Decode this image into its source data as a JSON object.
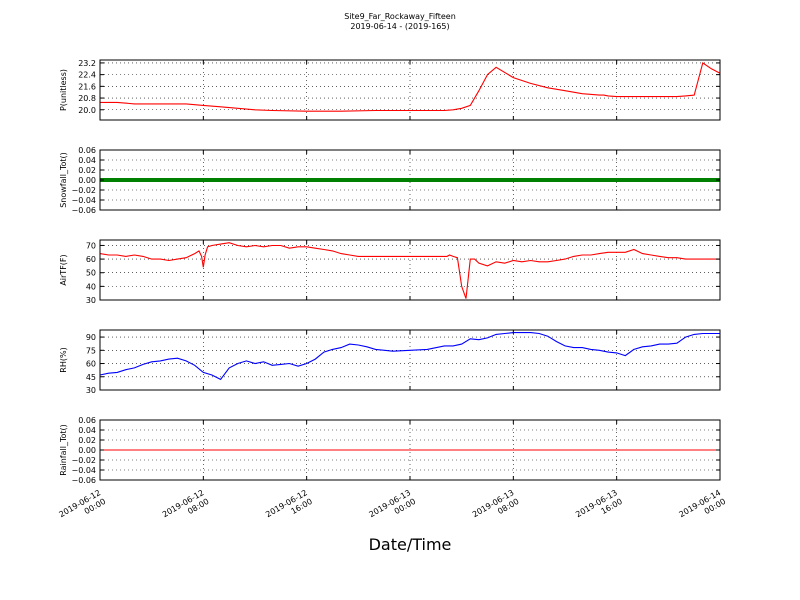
{
  "figure": {
    "title": "Site9_Far_Rockaway_Fifteen",
    "subtitle": "2019-06-14 - (2019-165)",
    "xlabel": "Date/Time"
  },
  "chart_data": [
    {
      "type": "line",
      "ylabel": "P(unitless)",
      "ylim": [
        19.3,
        23.4
      ],
      "yticks": [
        "23.2",
        "22.4",
        "21.6",
        "20.8",
        "20.0"
      ],
      "yticks_values": [
        23.2,
        22.4,
        21.6,
        20.8,
        20.0
      ],
      "color": "#ff0000",
      "grid": true,
      "x_hours": [
        0,
        2,
        4,
        8,
        10,
        12,
        14,
        16,
        18,
        20,
        24,
        28,
        32,
        34,
        36,
        37,
        38,
        38.5,
        39,
        39.5,
        40,
        41,
        42,
        43,
        44,
        45,
        46,
        48,
        50,
        52,
        54,
        56,
        58,
        58.5,
        59,
        60,
        61,
        62,
        63,
        64,
        65,
        66,
        67,
        68,
        69,
        70,
        71,
        72
      ],
      "values": [
        20.5,
        20.5,
        20.4,
        20.4,
        20.4,
        20.3,
        20.2,
        20.1,
        20.0,
        19.95,
        19.9,
        19.9,
        19.95,
        19.95,
        19.95,
        19.95,
        19.95,
        19.95,
        19.95,
        19.95,
        19.95,
        20.0,
        20.1,
        20.3,
        21.3,
        22.4,
        22.9,
        22.2,
        21.8,
        21.5,
        21.3,
        21.1,
        21.0,
        21.0,
        20.95,
        20.9,
        20.9,
        20.9,
        20.9,
        20.9,
        20.9,
        20.9,
        20.9,
        20.95,
        21.0,
        23.2,
        22.8,
        22.5
      ]
    },
    {
      "type": "line",
      "ylabel": "Snowfall_Tot()",
      "ylim": [
        -0.06,
        0.06
      ],
      "yticks": [
        "0.06",
        "0.04",
        "0.02",
        "0.00",
        "−0.02",
        "−0.04",
        "−0.06"
      ],
      "yticks_values": [
        0.06,
        0.04,
        0.02,
        0.0,
        -0.02,
        -0.04,
        -0.06
      ],
      "color": "#008000",
      "marker": "dots",
      "grid": true,
      "x_hours": [
        0,
        72
      ],
      "values": [
        0,
        0
      ]
    },
    {
      "type": "line",
      "ylabel": "AirTF(F)",
      "ylim": [
        30,
        74
      ],
      "yticks": [
        "70",
        "60",
        "50",
        "40",
        "30"
      ],
      "yticks_values": [
        70,
        60,
        50,
        40,
        30
      ],
      "color": "#ff0000",
      "grid": true,
      "x_hours": [
        0,
        1,
        2,
        3,
        4,
        5,
        6,
        7,
        8,
        9,
        10,
        11,
        11.5,
        11.8,
        12,
        12.2,
        12.5,
        13,
        14,
        15,
        16,
        17,
        18,
        19,
        20,
        21,
        22,
        23,
        24,
        25,
        26,
        27,
        28,
        29,
        30,
        31,
        32,
        33,
        34,
        35,
        36,
        37,
        38,
        39,
        39.5,
        39.8,
        40,
        40.3,
        40.6,
        41,
        41.5,
        42,
        42.5,
        43,
        43.5,
        44,
        45,
        46,
        47,
        48,
        49,
        50,
        51,
        52,
        53,
        54,
        55,
        56,
        57,
        58,
        59,
        60,
        61,
        62,
        63,
        64,
        65,
        66,
        67,
        68,
        69,
        70,
        71,
        72
      ],
      "values": [
        64,
        63,
        63,
        62,
        63,
        62,
        60,
        60,
        59,
        60,
        61,
        64,
        66,
        62,
        54,
        63,
        69,
        70,
        71,
        72,
        70,
        69,
        70,
        69,
        70,
        70,
        68,
        69,
        69,
        68,
        67,
        66,
        64,
        63,
        62,
        62,
        62,
        62,
        62,
        62,
        62,
        62,
        62,
        62,
        62,
        62,
        62,
        62,
        63,
        62,
        61,
        40,
        31,
        60,
        60,
        57,
        55,
        58,
        57,
        59,
        58,
        59,
        58,
        58,
        59,
        60,
        62,
        63,
        63,
        64,
        65,
        65,
        65,
        67,
        64,
        63,
        62,
        61,
        61,
        60,
        60,
        60,
        60,
        60
      ]
    },
    {
      "type": "line",
      "ylabel": "RH(%)",
      "ylim": [
        30,
        98
      ],
      "yticks": [
        "90",
        "75",
        "60",
        "45",
        "30"
      ],
      "yticks_values": [
        90,
        75,
        60,
        45,
        30
      ],
      "color": "#0000ff",
      "grid": true,
      "x_hours": [
        0,
        1,
        2,
        3,
        4,
        5,
        6,
        7,
        8,
        9,
        10,
        11,
        12,
        13,
        14,
        15,
        16,
        17,
        18,
        19,
        20,
        21,
        22,
        23,
        24,
        25,
        26,
        27,
        28,
        29,
        30,
        31,
        32,
        34,
        36,
        38,
        40,
        41,
        42,
        43,
        44,
        45,
        46,
        47,
        48,
        49,
        50,
        51,
        52,
        53,
        54,
        55,
        56,
        57,
        58,
        59,
        60,
        61,
        62,
        63,
        64,
        65,
        66,
        67,
        68,
        69,
        70,
        71,
        72
      ],
      "values": [
        47,
        49,
        50,
        53,
        55,
        59,
        62,
        63,
        65,
        66,
        63,
        58,
        50,
        47,
        42,
        55,
        60,
        63,
        60,
        62,
        58,
        59,
        60,
        57,
        60,
        65,
        73,
        76,
        78,
        82,
        81,
        79,
        76,
        74,
        75,
        76,
        80,
        80,
        82,
        88,
        87,
        89,
        93,
        94,
        95,
        95,
        95,
        94,
        91,
        85,
        80,
        78,
        78,
        76,
        75,
        73,
        72,
        69,
        76,
        79,
        80,
        82,
        82,
        83,
        90,
        93,
        94,
        94,
        94
      ]
    },
    {
      "type": "line",
      "ylabel": "Rainfall_Tot()",
      "ylim": [
        -0.06,
        0.06
      ],
      "yticks": [
        "0.06",
        "0.04",
        "0.02",
        "0.00",
        "−0.02",
        "−0.04",
        "−0.06"
      ],
      "yticks_values": [
        0.06,
        0.04,
        0.02,
        0.0,
        -0.02,
        -0.04,
        -0.06
      ],
      "color": "#ff0000",
      "grid": true,
      "x_hours": [
        0,
        72
      ],
      "values": [
        0,
        0
      ]
    }
  ],
  "x_axis": {
    "range_hours": [
      0,
      72
    ],
    "tick_hours": [
      0,
      12,
      24,
      36,
      48,
      60,
      72
    ],
    "tick_labels": [
      [
        "2019-06-12",
        "00:00"
      ],
      [
        "2019-06-12",
        "08:00"
      ],
      [
        "2019-06-12",
        "16:00"
      ],
      [
        "2019-06-13",
        "00:00"
      ],
      [
        "2019-06-13",
        "08:00"
      ],
      [
        "2019-06-13",
        "16:00"
      ],
      [
        "2019-06-14",
        "00:00"
      ]
    ]
  }
}
